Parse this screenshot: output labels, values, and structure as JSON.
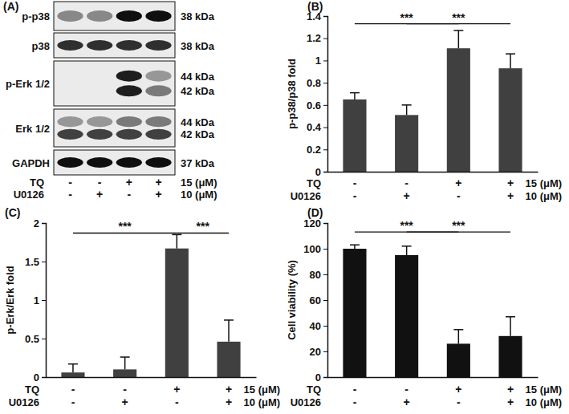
{
  "blot": {
    "title": "(A)",
    "rows": [
      {
        "label": "p-p38",
        "kda": [
          "38 kDa"
        ],
        "intensity": [
          [
            0.55,
            0.55,
            0.95,
            0.95
          ]
        ]
      },
      {
        "label": "p38",
        "kda": [
          "38 kDa"
        ],
        "intensity": [
          [
            0.85,
            0.85,
            0.85,
            0.85
          ]
        ]
      },
      {
        "label": "p-Erk 1/2",
        "kda": [
          "44 kDa",
          "42 kDa"
        ],
        "intensity": [
          [
            0,
            0,
            0.9,
            0.5
          ],
          [
            0,
            0,
            0.9,
            0.6
          ]
        ]
      },
      {
        "label": "Erk 1/2",
        "kda": [
          "44 kDa",
          "42 kDa"
        ],
        "intensity": [
          [
            0.5,
            0.5,
            0.6,
            0.6
          ],
          [
            0.8,
            0.8,
            0.8,
            0.8
          ]
        ]
      },
      {
        "label": "GAPDH",
        "kda": [
          "37 kDa"
        ],
        "intensity": [
          [
            0.95,
            0.95,
            0.95,
            0.95
          ]
        ]
      }
    ],
    "conditions": [
      {
        "name": "TQ",
        "signs": [
          "-",
          "-",
          "+",
          "+"
        ],
        "dose": "15 (μM)"
      },
      {
        "name": "U0126",
        "signs": [
          "-",
          "+",
          "-",
          "+"
        ],
        "dose": "10 (μM)"
      }
    ]
  },
  "chart_data": [
    {
      "type": "bar",
      "title": "(B)",
      "y_label": "p-p38/p38 fold",
      "categories": [
        null,
        null,
        null,
        null
      ],
      "values": [
        0.65,
        0.51,
        1.11,
        0.93
      ],
      "errors": [
        0.06,
        0.09,
        0.16,
        0.13
      ],
      "color": "#404040",
      "ylim": [
        0,
        1.4
      ],
      "yticks": [
        0,
        0.2,
        0.4,
        0.6,
        0.8,
        1,
        1.2,
        1.4
      ],
      "annotations": [
        {
          "from": 0,
          "to": 2,
          "y": 1.33,
          "label": "***"
        },
        {
          "from": 1,
          "to": 3,
          "y": 1.33,
          "label": "***"
        }
      ],
      "conditions": [
        {
          "name": "TQ",
          "signs": [
            "-",
            "-",
            "+",
            "+"
          ],
          "dose": "15 (μM)"
        },
        {
          "name": "U0126",
          "signs": [
            "-",
            "+",
            "-",
            "+"
          ],
          "dose": "10 (μM)"
        }
      ]
    },
    {
      "type": "bar",
      "title": "(C)",
      "y_label": "p-Erk/Erk fold",
      "categories": [
        null,
        null,
        null,
        null
      ],
      "values": [
        0.06,
        0.1,
        1.67,
        0.46
      ],
      "errors": [
        0.11,
        0.16,
        0.18,
        0.28
      ],
      "color": "#404040",
      "ylim": [
        0,
        2
      ],
      "yticks": [
        0,
        0.5,
        1,
        1.5,
        2
      ],
      "annotations": [
        {
          "from": 0,
          "to": 2,
          "y": 1.87,
          "label": "***"
        },
        {
          "from": 2,
          "to": 3,
          "y": 1.87,
          "label": "***"
        }
      ],
      "conditions": [
        {
          "name": "TQ",
          "signs": [
            "-",
            "-",
            "+",
            "+"
          ],
          "dose": "15 (μM)"
        },
        {
          "name": "U0126",
          "signs": [
            "-",
            "+",
            "-",
            "+"
          ],
          "dose": "10 (μM)"
        }
      ]
    },
    {
      "type": "bar",
      "title": "(D)",
      "y_label": "Cell viability (%)",
      "categories": [
        null,
        null,
        null,
        null
      ],
      "values": [
        100,
        95,
        26,
        32
      ],
      "errors": [
        3,
        7,
        11,
        15
      ],
      "color": "#111111",
      "ylim": [
        0,
        120
      ],
      "yticks": [
        0,
        20,
        40,
        60,
        80,
        100,
        120
      ],
      "annotations": [
        {
          "from": 0,
          "to": 2,
          "y": 113,
          "label": "***"
        },
        {
          "from": 1,
          "to": 3,
          "y": 113,
          "label": "***"
        }
      ],
      "conditions": [
        {
          "name": "TQ",
          "signs": [
            "-",
            "-",
            "+",
            "+"
          ],
          "dose": "15 (μM)"
        },
        {
          "name": "U0126",
          "signs": [
            "-",
            "+",
            "-",
            "+"
          ],
          "dose": "10 (μM)"
        }
      ]
    }
  ]
}
